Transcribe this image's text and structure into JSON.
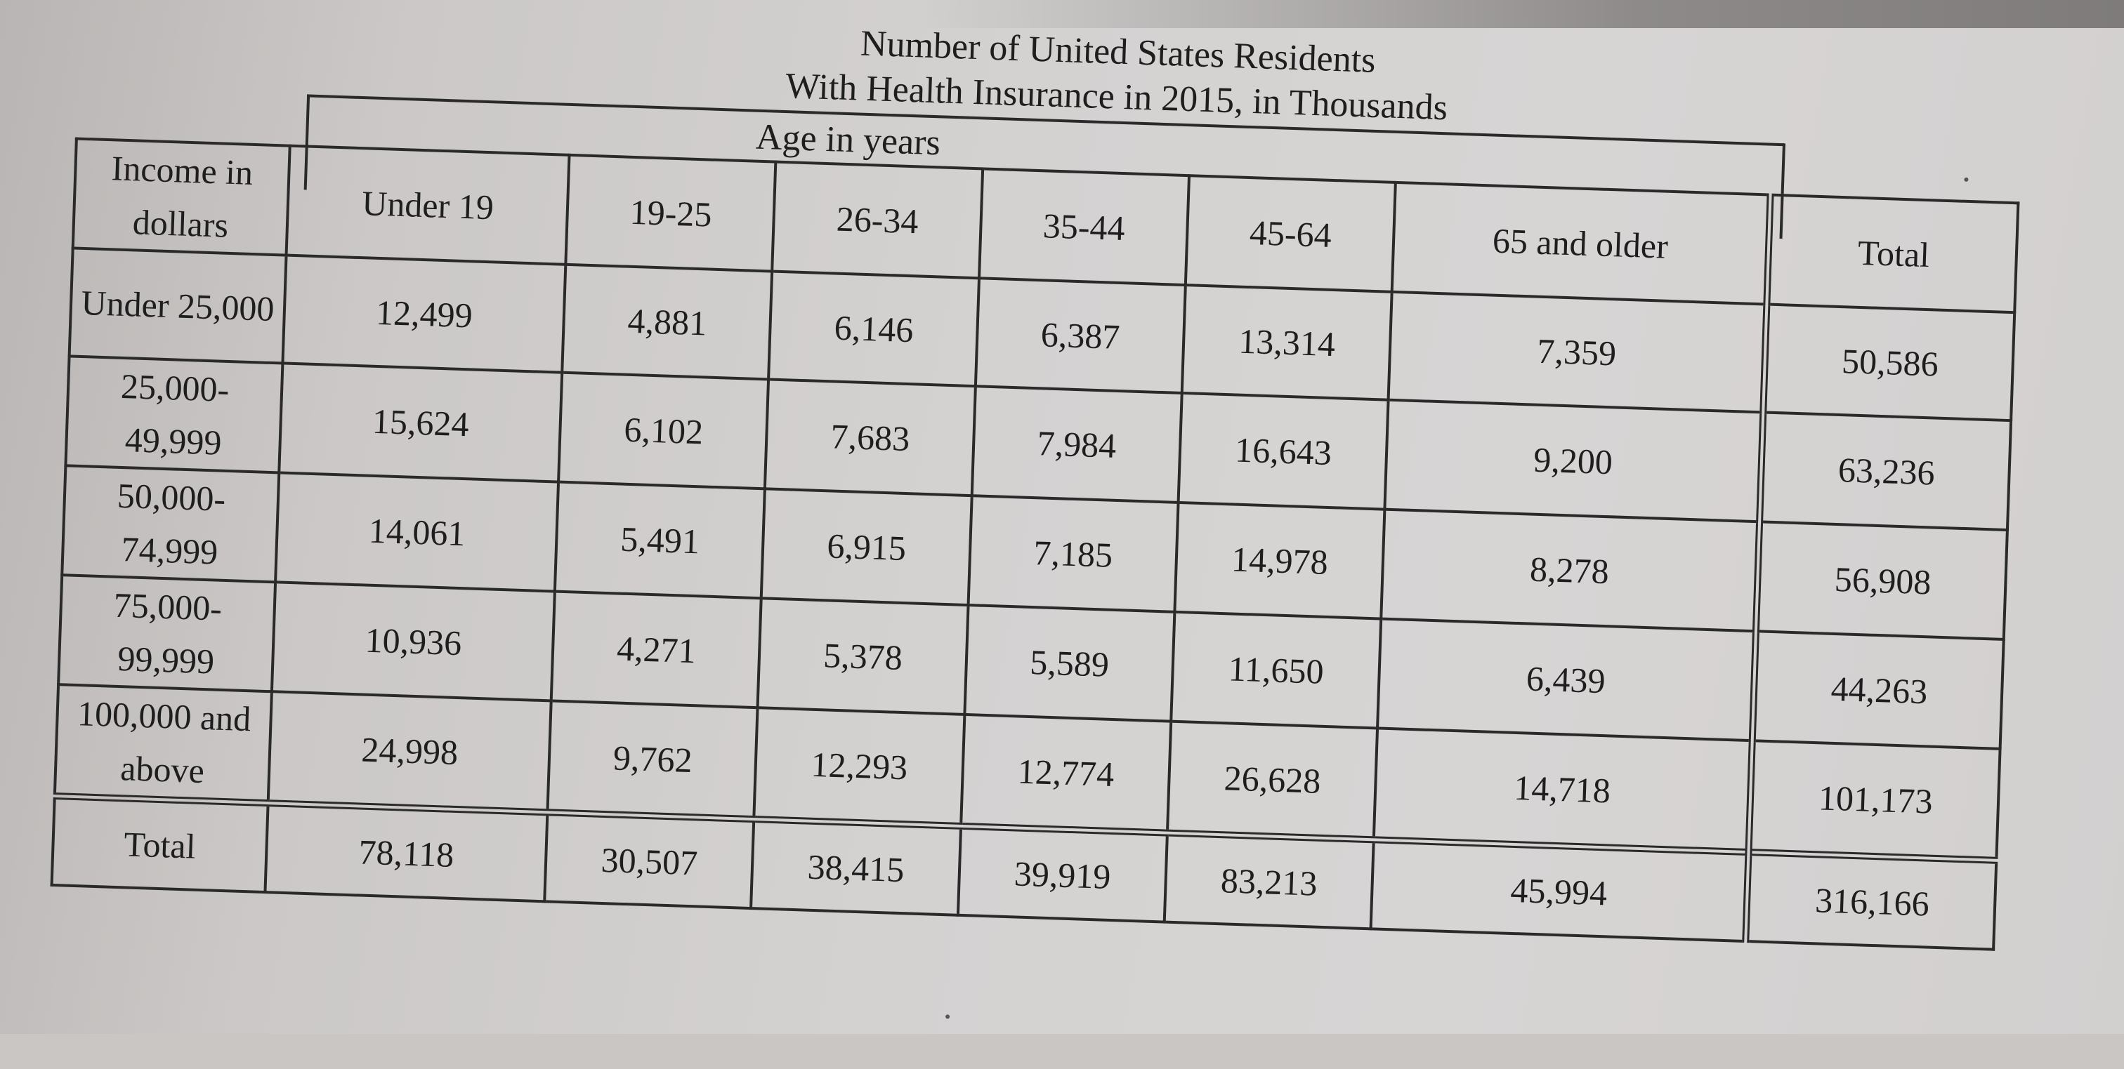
{
  "title_line1": "Number of United States Residents",
  "title_line2": "With Health Insurance in 2015, in Thousands",
  "age_group_label": "Age in years",
  "corner_header": "Income in dollars",
  "columns": [
    "Under 19",
    "19-25",
    "26-34",
    "35-44",
    "45-64",
    "65 and older",
    "Total"
  ],
  "rows": [
    {
      "label": "Under 25,000",
      "values": [
        "12,499",
        "4,881",
        "6,146",
        "6,387",
        "13,314",
        "7,359",
        "50,586"
      ]
    },
    {
      "label": "25,000- 49,999",
      "values": [
        "15,624",
        "6,102",
        "7,683",
        "7,984",
        "16,643",
        "9,200",
        "63,236"
      ]
    },
    {
      "label": "50,000- 74,999",
      "values": [
        "14,061",
        "5,491",
        "6,915",
        "7,185",
        "14,978",
        "8,278",
        "56,908"
      ]
    },
    {
      "label": "75,000- 99,999",
      "values": [
        "10,936",
        "4,271",
        "5,378",
        "5,589",
        "11,650",
        "6,439",
        "44,263"
      ]
    },
    {
      "label": "100,000 and above",
      "values": [
        "24,998",
        "9,762",
        "12,293",
        "12,774",
        "26,628",
        "14,718",
        "101,173"
      ]
    }
  ],
  "total_row": {
    "label": "Total",
    "values": [
      "78,118",
      "30,507",
      "38,415",
      "39,919",
      "83,213",
      "45,994",
      "316,166"
    ]
  }
}
